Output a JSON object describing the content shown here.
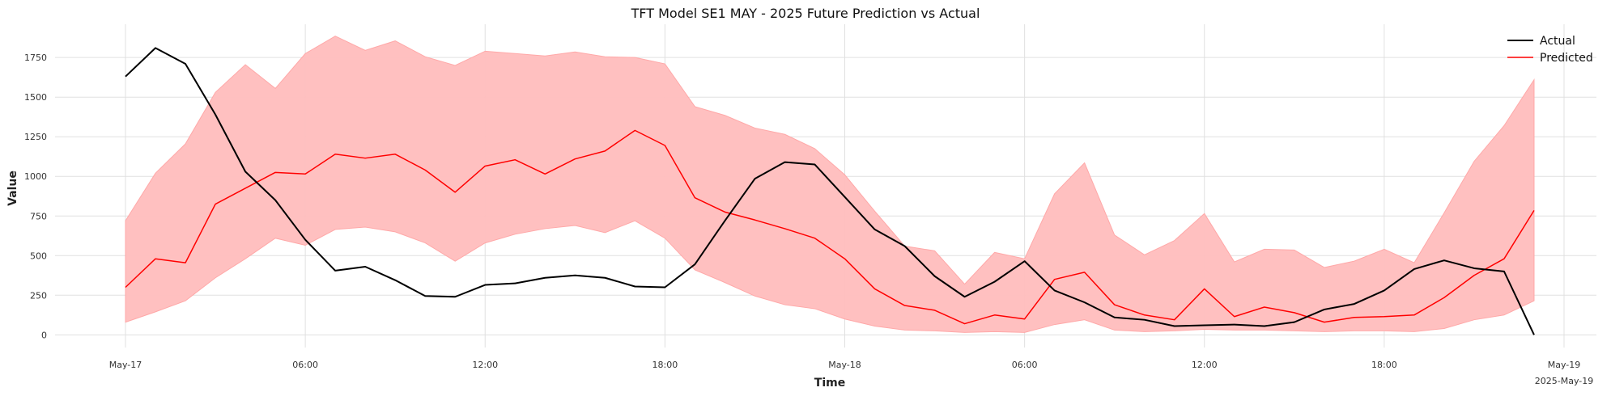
{
  "chart_data": {
    "type": "line",
    "title": "TFT Model SE1 MAY - 2025 Future Prediction vs Actual",
    "xlabel": "Time",
    "ylabel": "Value",
    "ylim": [
      -80,
      1960
    ],
    "y_ticks": [
      0,
      250,
      500,
      750,
      1000,
      1250,
      1500,
      1750
    ],
    "y_tick_labels": [
      "0",
      "250",
      "500",
      "750",
      "1000",
      "1250",
      "1500",
      "1750"
    ],
    "x_start": "2025-05-17 00:00",
    "x_end": "2025-05-19 00:00",
    "x_ticks": [
      {
        "x": "2025-05-17 00:00",
        "label": "May-17"
      },
      {
        "x": "2025-05-17 06:00",
        "label": "06:00"
      },
      {
        "x": "2025-05-17 12:00",
        "label": "12:00"
      },
      {
        "x": "2025-05-17 18:00",
        "label": "18:00"
      },
      {
        "x": "2025-05-18 00:00",
        "label": "May-18"
      },
      {
        "x": "2025-05-18 06:00",
        "label": "06:00"
      },
      {
        "x": "2025-05-18 12:00",
        "label": "12:00"
      },
      {
        "x": "2025-05-18 18:00",
        "label": "18:00"
      },
      {
        "x": "2025-05-19 00:00",
        "label": "May-19"
      }
    ],
    "x_offset_label": "2025-May-19",
    "grid": true,
    "legend_position": "top-right",
    "series": [
      {
        "name": "Actual",
        "color": "#000000",
        "values": [
          1630,
          1810,
          1710,
          1390,
          1030,
          850,
          600,
          405,
          430,
          345,
          245,
          240,
          315,
          325,
          360,
          375,
          360,
          305,
          300,
          445,
          720,
          985,
          1090,
          1075,
          870,
          665,
          560,
          370,
          240,
          335,
          465,
          280,
          205,
          110,
          95,
          55,
          60,
          65,
          55,
          80,
          160,
          195,
          280,
          415,
          470,
          420,
          400,
          0
        ]
      },
      {
        "name": "Predicted",
        "color": "#ff0000",
        "values": [
          300,
          480,
          455,
          825,
          925,
          1025,
          1015,
          1140,
          1115,
          1140,
          1040,
          900,
          1065,
          1105,
          1015,
          1110,
          1160,
          1290,
          1195,
          865,
          775,
          725,
          670,
          610,
          480,
          290,
          185,
          155,
          70,
          125,
          100,
          350,
          395,
          190,
          125,
          95,
          290,
          115,
          175,
          140,
          80,
          110,
          115,
          125,
          235,
          375,
          480,
          785
        ]
      }
    ],
    "band": {
      "color": "#ffbdbd",
      "lower": [
        80,
        145,
        215,
        360,
        480,
        610,
        565,
        665,
        680,
        650,
        580,
        465,
        580,
        635,
        670,
        690,
        645,
        720,
        610,
        410,
        330,
        245,
        190,
        165,
        100,
        55,
        30,
        25,
        15,
        20,
        15,
        65,
        95,
        30,
        20,
        25,
        35,
        30,
        30,
        25,
        20,
        25,
        25,
        20,
        40,
        95,
        125,
        215
      ],
      "upper": [
        720,
        1020,
        1205,
        1530,
        1705,
        1555,
        1775,
        1885,
        1795,
        1855,
        1755,
        1700,
        1790,
        1775,
        1760,
        1785,
        1755,
        1750,
        1710,
        1440,
        1385,
        1305,
        1265,
        1175,
        1010,
        780,
        560,
        530,
        320,
        520,
        480,
        890,
        1085,
        630,
        505,
        595,
        765,
        460,
        540,
        535,
        425,
        465,
        540,
        455,
        770,
        1095,
        1320,
        1610
      ]
    }
  }
}
